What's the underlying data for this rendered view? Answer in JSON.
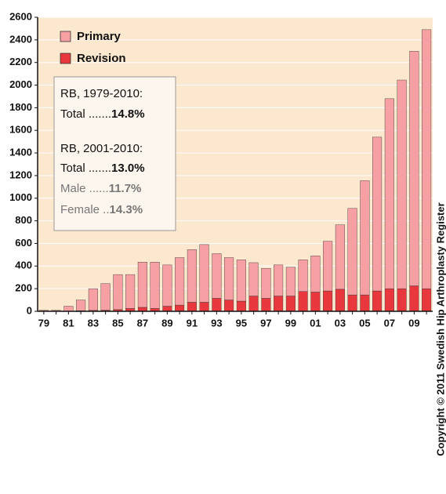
{
  "chart_data": {
    "type": "stacked-bar",
    "categories": [
      "79",
      null,
      "81",
      null,
      "83",
      null,
      "85",
      null,
      "87",
      null,
      "89",
      null,
      "91",
      null,
      "93",
      null,
      "95",
      null,
      "97",
      null,
      "99",
      null,
      "01",
      null,
      "03",
      null,
      "05",
      null,
      "07",
      null,
      "09",
      null
    ],
    "series": [
      {
        "name": "Revision",
        "color": "#e8383d",
        "values": [
          0,
          0,
          2,
          5,
          8,
          10,
          15,
          25,
          35,
          25,
          45,
          55,
          80,
          80,
          115,
          100,
          90,
          135,
          115,
          135,
          135,
          175,
          170,
          180,
          195,
          145,
          145,
          180,
          200,
          200,
          225,
          200
        ]
      },
      {
        "name": "Primary",
        "color": "#f7a0a3",
        "values": [
          10,
          10,
          43,
          95,
          192,
          235,
          310,
          300,
          400,
          410,
          365,
          420,
          465,
          510,
          395,
          375,
          365,
          295,
          265,
          275,
          255,
          280,
          320,
          440,
          570,
          765,
          1010,
          1360,
          1680,
          1845,
          2075,
          2290
        ]
      }
    ],
    "ylim": [
      0,
      2600
    ],
    "yticks": [
      0,
      200,
      400,
      600,
      800,
      1000,
      1200,
      1400,
      1600,
      1800,
      2000,
      2200,
      2400,
      2600
    ],
    "grid": true,
    "legend": "top-left",
    "annotations": [
      {
        "label": "RB, 1979-2010:"
      },
      {
        "label": "Total .......",
        "value": "14.8%"
      },
      {
        "label": "RB, 2001-2010:"
      },
      {
        "label": "Total .......",
        "value": "13.0%"
      },
      {
        "label": "Male ......",
        "value": "11.7%"
      },
      {
        "label": "Female ..",
        "value": "14.3%"
      }
    ],
    "copyright": "Copyright © 2011 Swedish Hip Arthroplasty Register"
  }
}
